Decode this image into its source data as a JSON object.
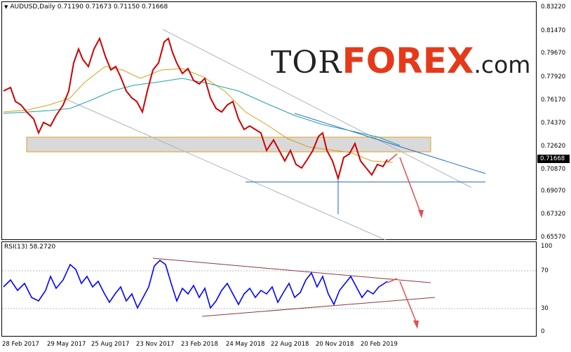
{
  "header": {
    "title": "AUDUSD,Daily  0.71190 0.71673 0.71150 0.71668"
  },
  "price_axis": {
    "labels": [
      "0.83220",
      "0.81470",
      "0.79670",
      "0.77920",
      "0.76170",
      "0.74370",
      "0.72620",
      "0.70870",
      "0.69070",
      "0.67320",
      "0.65570"
    ],
    "current": "0.71668"
  },
  "rsi": {
    "title": "RSI(13) 58.2720",
    "labels": [
      "100",
      "70",
      "30",
      "0"
    ]
  },
  "date_axis": {
    "labels": [
      "28 Feb 2017",
      "29 May 2017",
      "25 Aug 2017",
      "23 Nov 2017",
      "23 Feb 2018",
      "24 May 2018",
      "22 Aug 2018",
      "20 Nov 2018",
      "20 Feb 2019"
    ]
  },
  "logo": {
    "tor": "TOR",
    "forex": "FOREX",
    "com": ".com"
  },
  "colors": {
    "candle_up": "#00a651",
    "candle_down": "#cc0000",
    "ma_fast": "#d4a017",
    "ma_slow": "#1fa3a3",
    "rsi_line": "#0000ff",
    "trendline": "#8b3a3a",
    "channel": "#aab4bf",
    "zone": "#cfcfcf",
    "zone_border": "#e0a020",
    "arrow": "#e05050",
    "support": "#2060c0"
  },
  "chart_data": {
    "type": "line",
    "series": [
      {
        "name": "AUDUSD",
        "x": [
          "28 Feb 2017",
          "29 May 2017",
          "25 Aug 2017",
          "23 Nov 2017",
          "23 Feb 2018",
          "24 May 2018",
          "22 Aug 2018",
          "20 Nov 2018",
          "20 Feb 2019"
        ],
        "values": [
          0.771,
          0.747,
          0.795,
          0.756,
          0.781,
          0.758,
          0.734,
          0.724,
          0.7167
        ]
      }
    ],
    "ylim": [
      0.6557,
      0.8322
    ]
  }
}
